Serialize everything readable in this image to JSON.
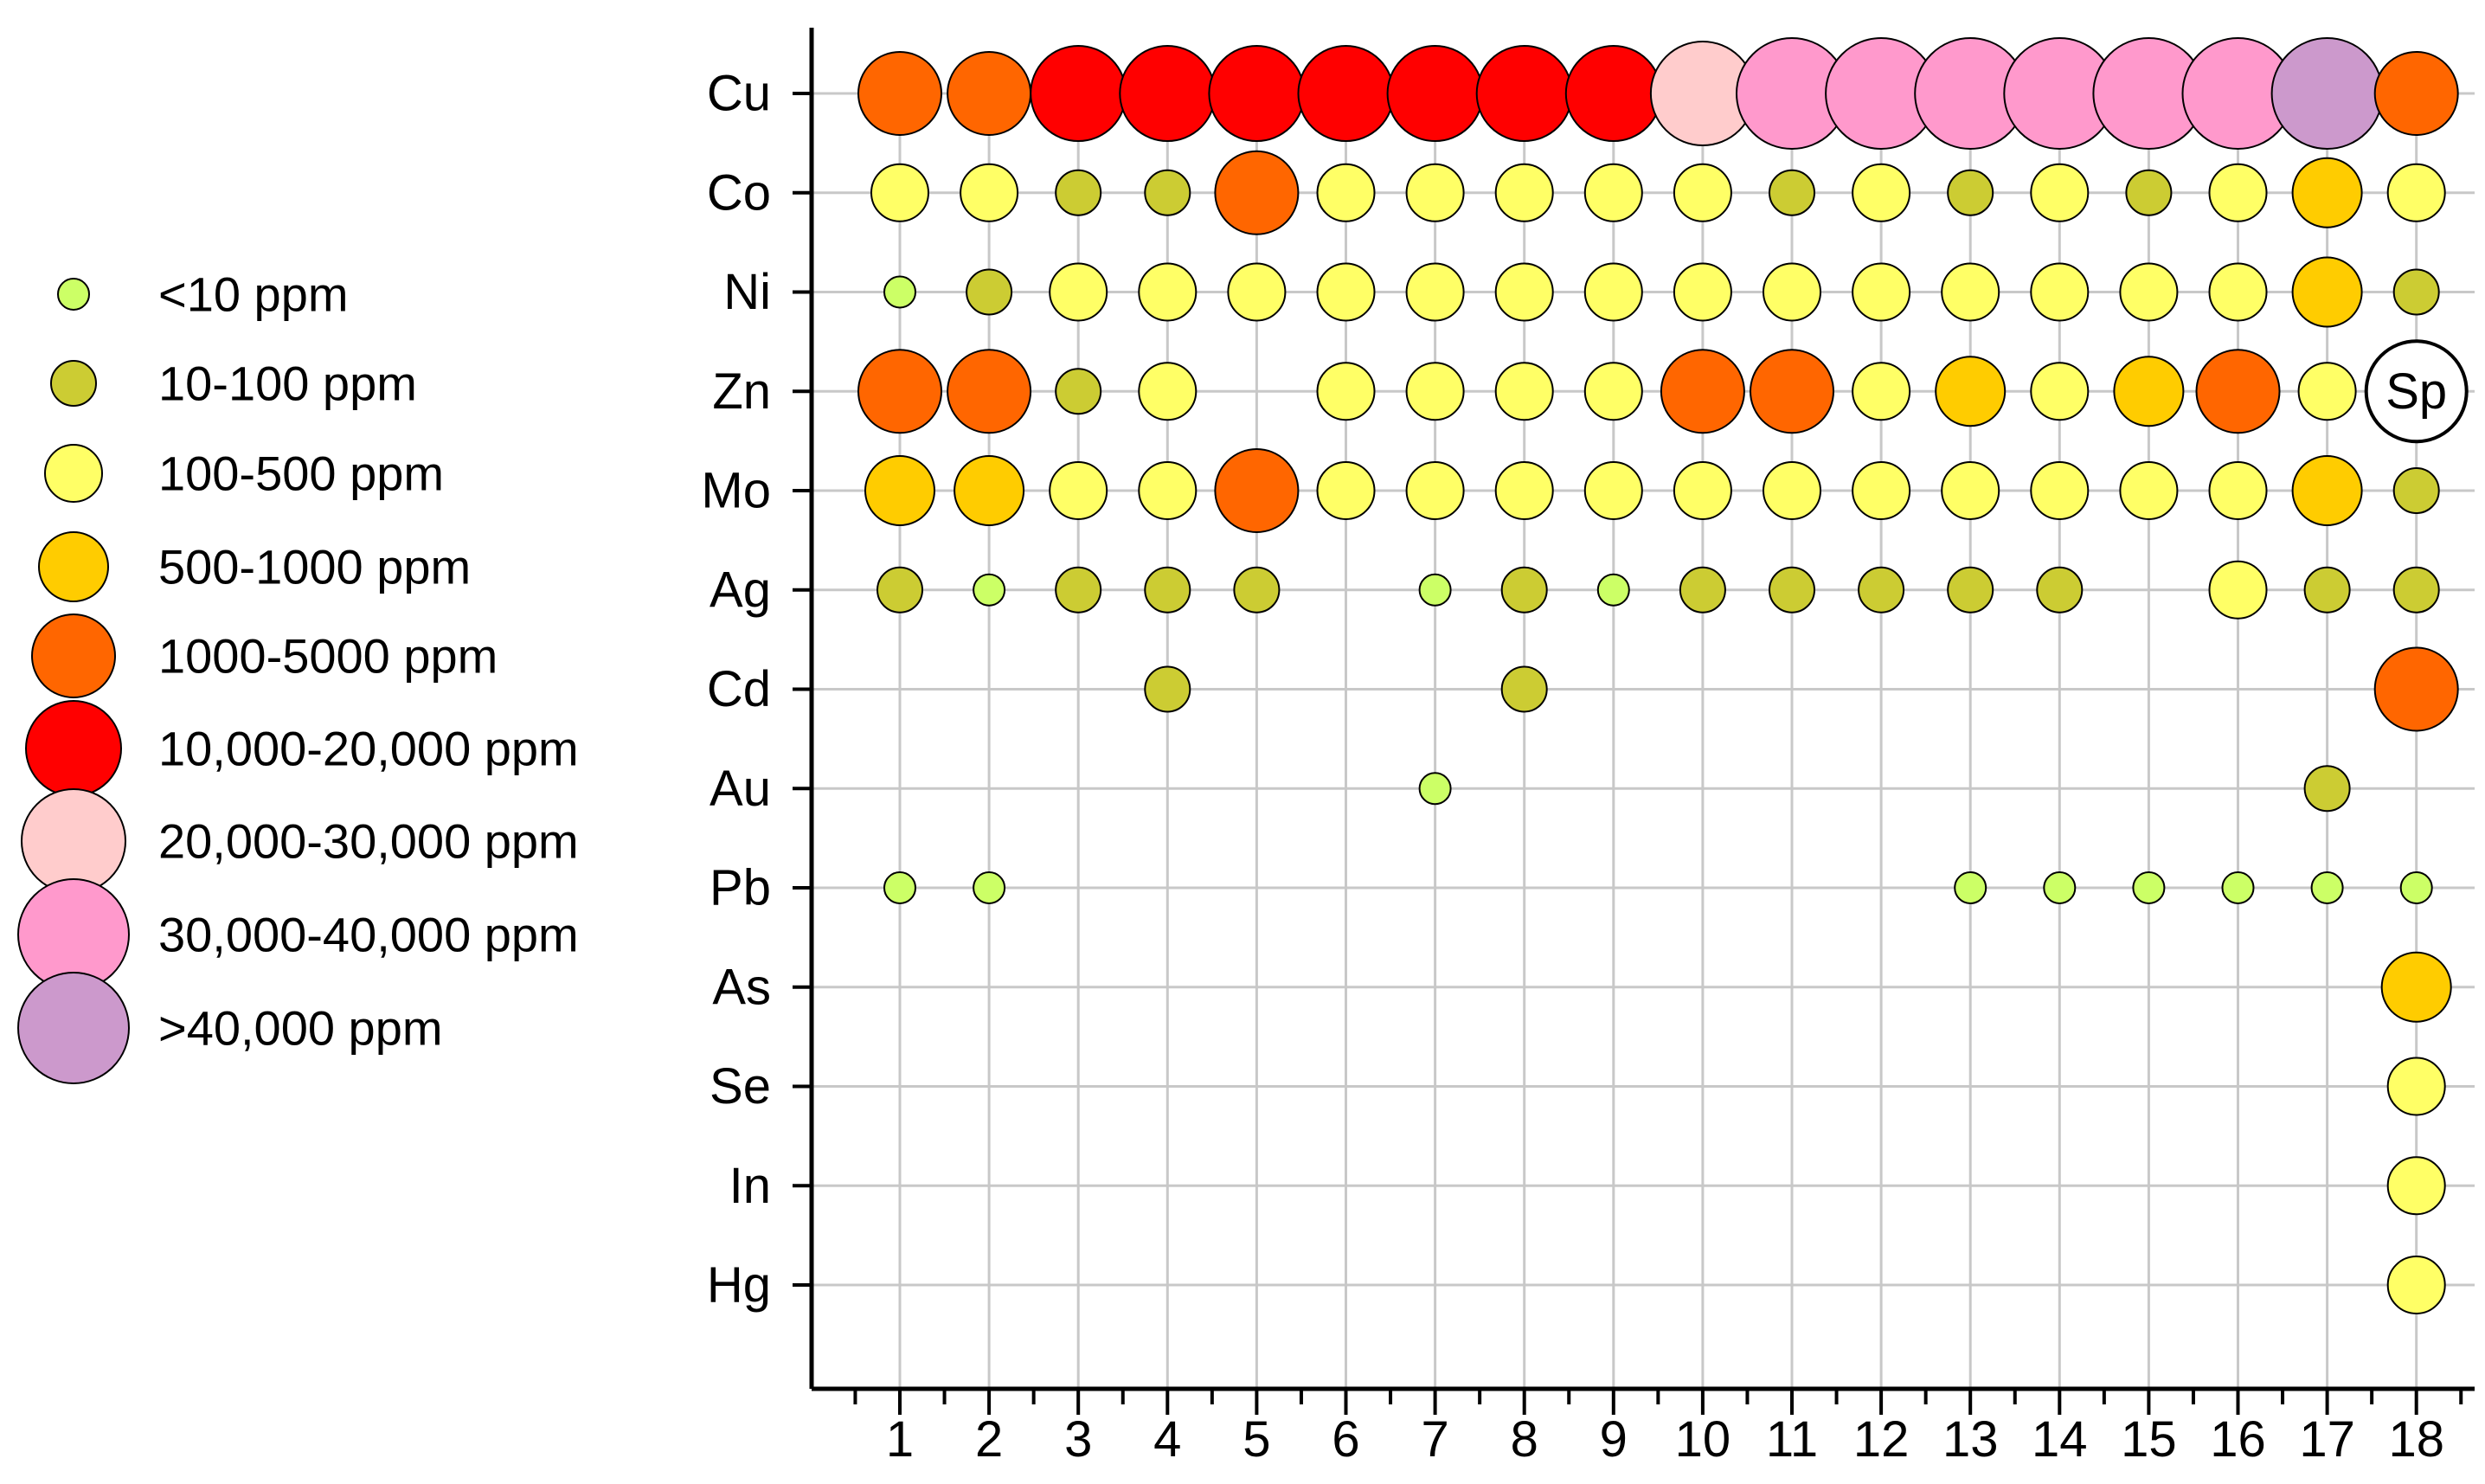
{
  "chart_data": {
    "type": "scatter",
    "subtype": "bubble-matrix",
    "title": "",
    "xlabel": "",
    "ylabel": "",
    "x_categories": [
      "1",
      "2",
      "3",
      "4",
      "5",
      "6",
      "7",
      "8",
      "9",
      "10",
      "11",
      "12",
      "13",
      "14",
      "15",
      "16",
      "17",
      "18"
    ],
    "y_categories": [
      "Cu",
      "Co",
      "Ni",
      "Zn",
      "Mo",
      "Ag",
      "Cd",
      "Au",
      "Pb",
      "As",
      "Se",
      "In",
      "Hg"
    ],
    "grid": true,
    "legend_position": "left",
    "legend": [
      {
        "label": "<10 ppm",
        "color": "#ccff66"
      },
      {
        "label": "10-100 ppm",
        "color": "#cccc33"
      },
      {
        "label": "100-500 ppm",
        "color": "#ffff66"
      },
      {
        "label": "500-1000 ppm",
        "color": "#ffcc00"
      },
      {
        "label": "1000-5000 ppm",
        "color": "#ff6600"
      },
      {
        "label": "10,000-20,000 ppm",
        "color": "#ff0000"
      },
      {
        "label": "20,000-30,000 ppm",
        "color": "#ffcccc"
      },
      {
        "label": "30,000-40,000 ppm",
        "color": "#ff99cc"
      },
      {
        "label": ">40,000 ppm",
        "color": "#cc99cc"
      }
    ],
    "rows": {
      "Cu": [
        4,
        4,
        5,
        5,
        5,
        5,
        5,
        5,
        5,
        6,
        7,
        7,
        7,
        7,
        7,
        7,
        8,
        4
      ],
      "Co": [
        2,
        2,
        1,
        1,
        4,
        2,
        2,
        2,
        2,
        2,
        1,
        2,
        1,
        2,
        1,
        2,
        3,
        2
      ],
      "Ni": [
        0,
        1,
        2,
        2,
        2,
        2,
        2,
        2,
        2,
        2,
        2,
        2,
        2,
        2,
        2,
        2,
        3,
        1
      ],
      "Zn": [
        4,
        4,
        1,
        2,
        null,
        2,
        2,
        2,
        2,
        4,
        4,
        2,
        3,
        2,
        3,
        4,
        2,
        "Sp"
      ],
      "Mo": [
        3,
        3,
        2,
        2,
        4,
        2,
        2,
        2,
        2,
        2,
        2,
        2,
        2,
        2,
        2,
        2,
        3,
        1
      ],
      "Ag": [
        1,
        0,
        1,
        1,
        1,
        null,
        0,
        1,
        0,
        1,
        1,
        1,
        1,
        1,
        null,
        2,
        1,
        1
      ],
      "Cd": [
        null,
        null,
        null,
        1,
        null,
        null,
        null,
        1,
        null,
        null,
        null,
        null,
        null,
        null,
        null,
        null,
        null,
        4
      ],
      "Au": [
        null,
        null,
        null,
        null,
        null,
        null,
        0,
        null,
        null,
        null,
        null,
        null,
        null,
        null,
        null,
        null,
        1,
        null
      ],
      "Pb": [
        0,
        0,
        null,
        null,
        null,
        null,
        null,
        null,
        null,
        null,
        null,
        null,
        0,
        0,
        0,
        0,
        0,
        0
      ],
      "As": [
        null,
        null,
        null,
        null,
        null,
        null,
        null,
        null,
        null,
        null,
        null,
        null,
        null,
        null,
        null,
        null,
        null,
        3
      ],
      "Se": [
        null,
        null,
        null,
        null,
        null,
        null,
        null,
        null,
        null,
        null,
        null,
        null,
        null,
        null,
        null,
        null,
        null,
        2
      ],
      "In": [
        null,
        null,
        null,
        null,
        null,
        null,
        null,
        null,
        null,
        null,
        null,
        null,
        null,
        null,
        null,
        null,
        null,
        2
      ],
      "Hg": [
        null,
        null,
        null,
        null,
        null,
        null,
        null,
        null,
        null,
        null,
        null,
        null,
        null,
        null,
        null,
        null,
        null,
        2
      ]
    },
    "special_label": "Sp"
  }
}
